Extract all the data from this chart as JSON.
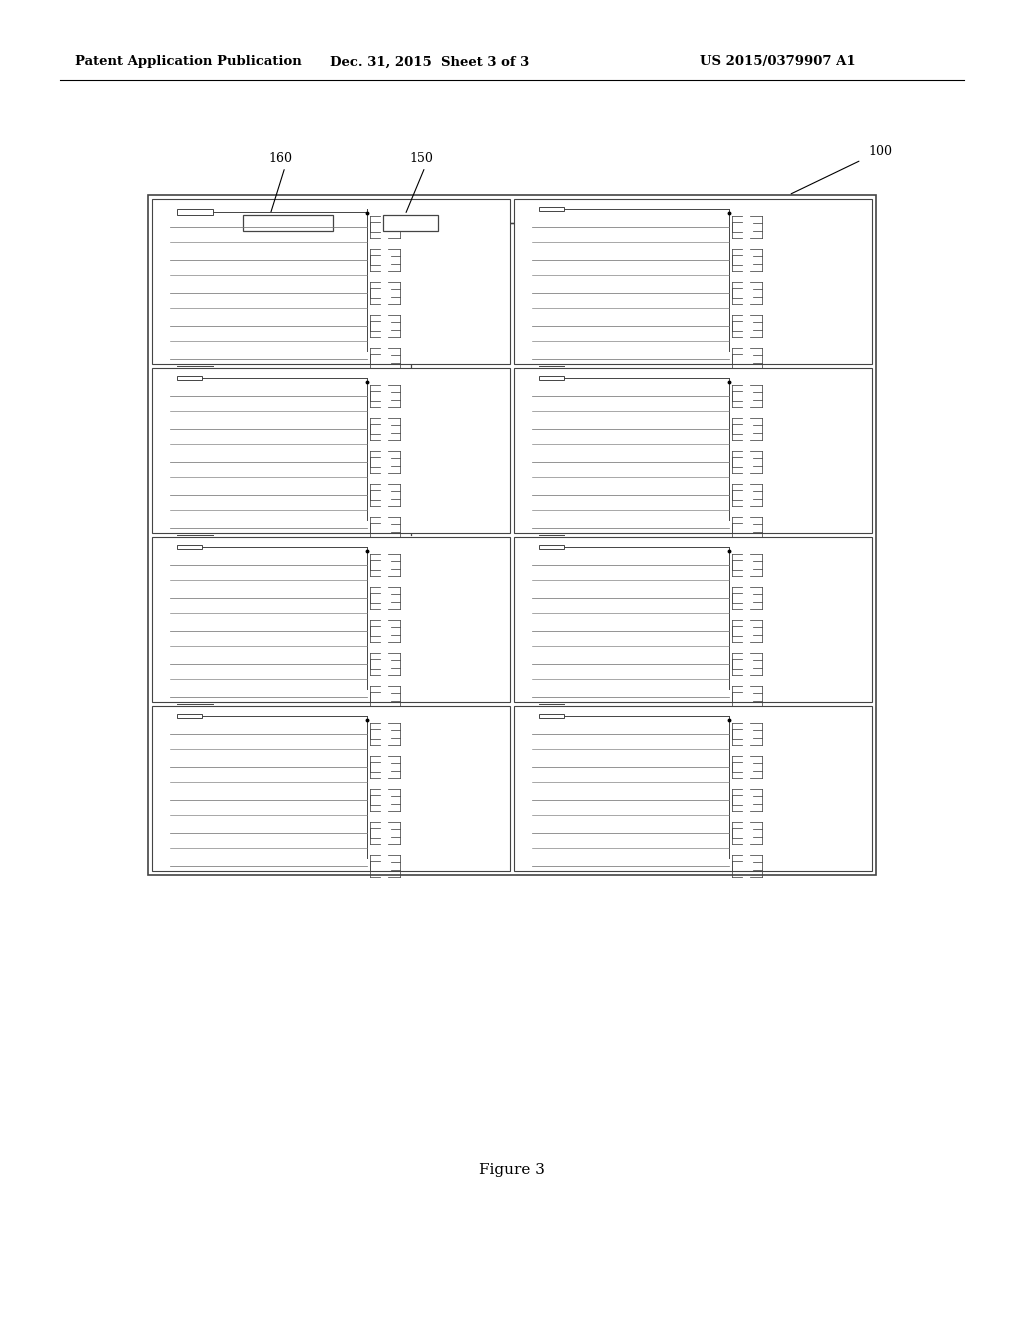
{
  "bg_color": "#ffffff",
  "header_left": "Patent Application Publication",
  "header_mid": "Dec. 31, 2015  Sheet 3 of 3",
  "header_right": "US 2015/0379907 A1",
  "figure_label": "Figure 3",
  "label_100": "100",
  "label_150": "150",
  "label_160": "160",
  "lc": "#444444",
  "tlc": "#777777",
  "fig_w": 10.24,
  "fig_h": 13.2
}
